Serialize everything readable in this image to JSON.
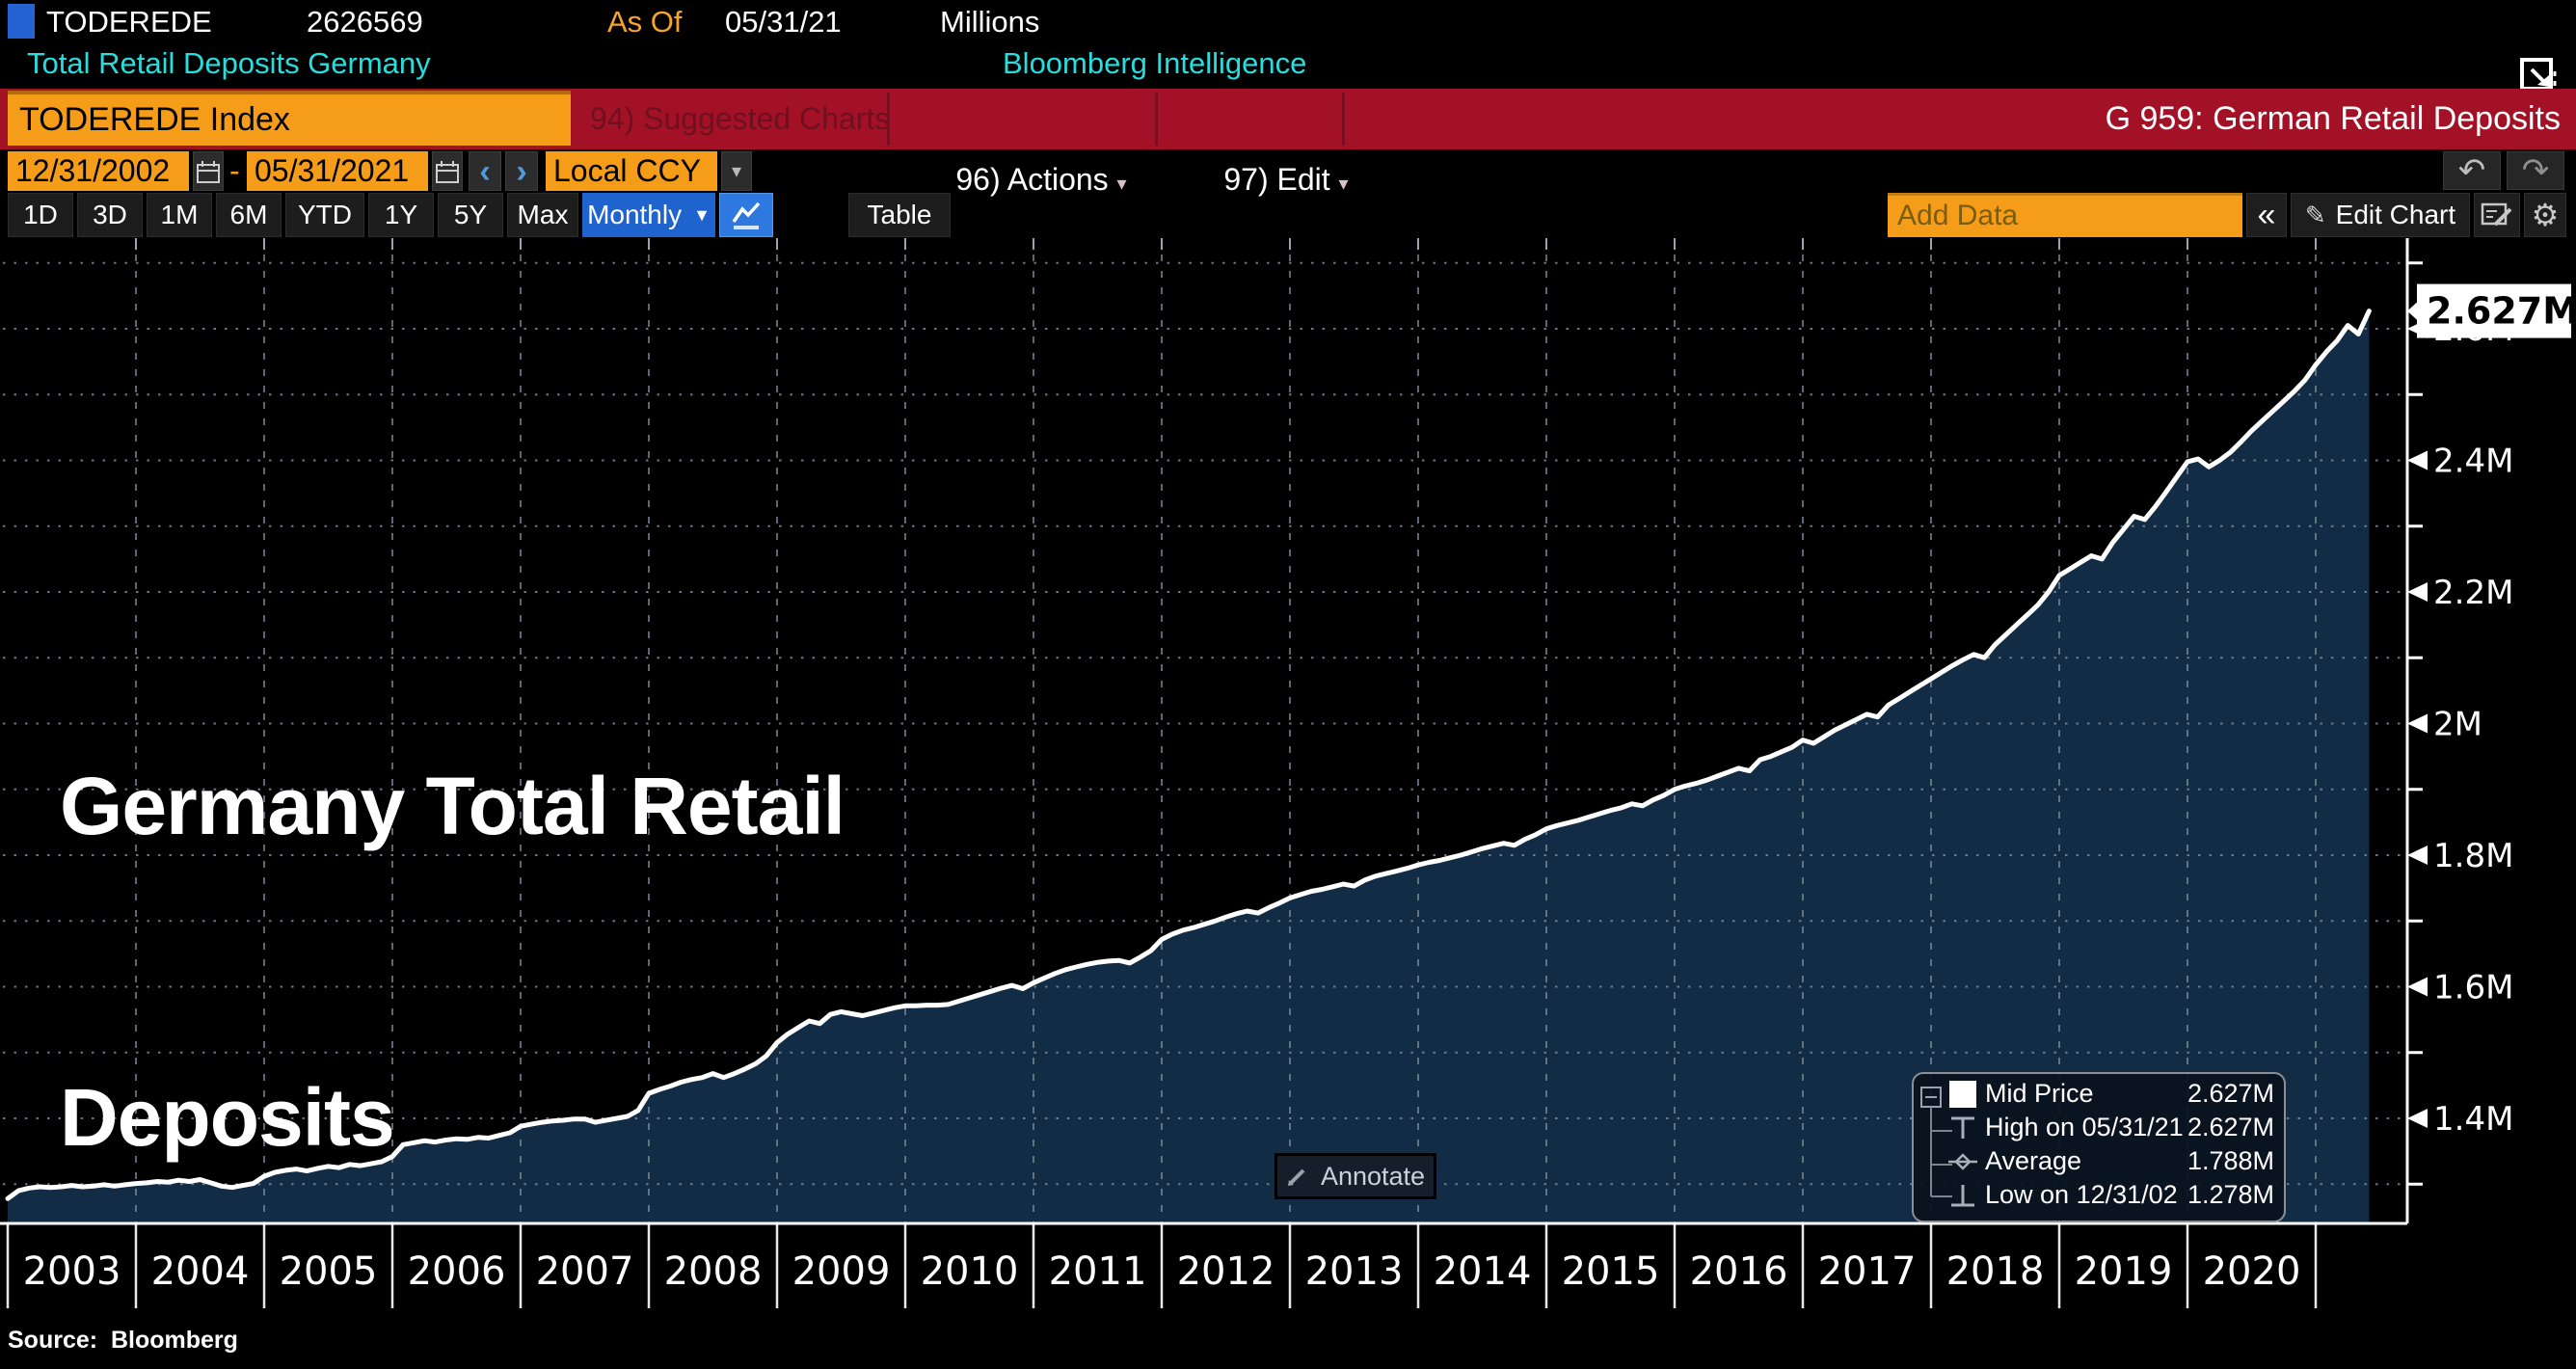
{
  "header": {
    "security": "TODEREDE",
    "last_value": "2626569",
    "as_of_label": "As Of",
    "as_of_date": "05/31/21",
    "units": "Millions",
    "subtitle_left": "Total Retail Deposits Germany",
    "subtitle_right": "Bloomberg Intelligence"
  },
  "toolbar": {
    "security_field": "TODEREDE Index",
    "suggested_charts": "94) Suggested Charts",
    "actions": "96) Actions",
    "edit": "97) Edit",
    "chart_tag": "G 959: German Retail Deposits"
  },
  "date_row": {
    "start_date": "12/31/2002",
    "separator": "-",
    "end_date": "05/31/2021",
    "currency": "Local CCY"
  },
  "period_row": {
    "periods": [
      "1D",
      "3D",
      "1M",
      "6M",
      "YTD",
      "1Y",
      "5Y",
      "Max"
    ],
    "frequency": "Monthly",
    "table_label": "Table",
    "add_data_placeholder": "Add Data",
    "edit_chart_label": "Edit Chart"
  },
  "icons": {
    "dropdown_arrow": "▼",
    "small_arrow": "▾",
    "undo": "↶",
    "redo": "↷",
    "chevron_left": "‹",
    "chevron_right": "›",
    "double_chevron_left": "«",
    "pencil": "✎",
    "gear": "⚙"
  },
  "chart": {
    "watermark": [
      "Germany Total Retail",
      "Deposits"
    ],
    "annotate_label": "Annotate",
    "source": "Source:  Bloomberg"
  },
  "legend": {
    "rows": [
      {
        "marker": "mid-price-swatch",
        "label": "Mid Price",
        "value": "2.627M"
      },
      {
        "marker": "high-marker",
        "label": "High on 05/31/21",
        "value": "2.627M"
      },
      {
        "marker": "average-marker",
        "label": "Average",
        "value": "1.788M"
      },
      {
        "marker": "low-marker",
        "label": "Low on 12/31/02",
        "value": "1.278M"
      }
    ]
  },
  "chart_data": {
    "type": "area",
    "title": "Germany Total Retail Deposits",
    "frequency": "Monthly",
    "x_years": [
      2003,
      2004,
      2005,
      2006,
      2007,
      2008,
      2009,
      2010,
      2011,
      2012,
      2013,
      2014,
      2015,
      2016,
      2017,
      2018,
      2019,
      2020
    ],
    "y_axis": {
      "major": [
        {
          "v": 1.4,
          "label": "1.4M"
        },
        {
          "v": 1.6,
          "label": "1.6M"
        },
        {
          "v": 1.8,
          "label": "1.8M"
        },
        {
          "v": 2.0,
          "label": "2M"
        },
        {
          "v": 2.2,
          "label": "2.2M"
        },
        {
          "v": 2.4,
          "label": "2.4M"
        },
        {
          "v": 2.6,
          "label": "2.6M"
        }
      ],
      "minor": [
        1.3,
        1.5,
        1.7,
        1.9,
        2.1,
        2.3,
        2.5,
        2.7
      ]
    },
    "last_point": {
      "date": "05/31/21",
      "value": 2.627,
      "label": "2.627M"
    },
    "stats": {
      "mid": "2.627M",
      "high_date": "05/31/21",
      "high": "2.627M",
      "average": "1.788M",
      "low_date": "12/31/02",
      "low": "1.278M"
    },
    "series": {
      "name": "TODEREDE Index Mid Price",
      "units": "Millions",
      "start_year": 2002,
      "start_month": 12,
      "monthly_values": [
        1.278,
        1.29,
        1.294,
        1.296,
        1.295,
        1.296,
        1.298,
        1.296,
        1.297,
        1.299,
        1.297,
        1.299,
        1.301,
        1.302,
        1.304,
        1.303,
        1.306,
        1.304,
        1.307,
        1.302,
        1.297,
        1.295,
        1.298,
        1.301,
        1.312,
        1.318,
        1.321,
        1.323,
        1.32,
        1.324,
        1.327,
        1.325,
        1.33,
        1.328,
        1.331,
        1.334,
        1.342,
        1.36,
        1.363,
        1.366,
        1.364,
        1.367,
        1.369,
        1.368,
        1.371,
        1.37,
        1.374,
        1.378,
        1.388,
        1.391,
        1.394,
        1.396,
        1.397,
        1.399,
        1.399,
        1.394,
        1.397,
        1.4,
        1.403,
        1.412,
        1.438,
        1.444,
        1.449,
        1.455,
        1.459,
        1.462,
        1.468,
        1.462,
        1.468,
        1.475,
        1.483,
        1.495,
        1.515,
        1.528,
        1.538,
        1.548,
        1.544,
        1.558,
        1.562,
        1.559,
        1.556,
        1.56,
        1.564,
        1.568,
        1.571,
        1.571,
        1.572,
        1.572,
        1.573,
        1.578,
        1.583,
        1.588,
        1.593,
        1.598,
        1.602,
        1.597,
        1.606,
        1.613,
        1.62,
        1.626,
        1.63,
        1.634,
        1.637,
        1.639,
        1.64,
        1.636,
        1.645,
        1.655,
        1.672,
        1.68,
        1.686,
        1.69,
        1.695,
        1.7,
        1.706,
        1.711,
        1.715,
        1.712,
        1.72,
        1.727,
        1.735,
        1.74,
        1.745,
        1.748,
        1.752,
        1.756,
        1.753,
        1.762,
        1.768,
        1.772,
        1.776,
        1.78,
        1.785,
        1.789,
        1.792,
        1.796,
        1.8,
        1.805,
        1.81,
        1.814,
        1.818,
        1.815,
        1.824,
        1.831,
        1.84,
        1.845,
        1.849,
        1.853,
        1.858,
        1.863,
        1.868,
        1.872,
        1.878,
        1.875,
        1.884,
        1.891,
        1.9,
        1.905,
        1.909,
        1.914,
        1.92,
        1.926,
        1.932,
        1.928,
        1.945,
        1.95,
        1.957,
        1.964,
        1.975,
        1.97,
        1.98,
        1.99,
        1.998,
        2.006,
        2.014,
        2.01,
        2.028,
        2.038,
        2.048,
        2.058,
        2.068,
        2.078,
        2.088,
        2.097,
        2.105,
        2.1,
        2.12,
        2.135,
        2.15,
        2.165,
        2.18,
        2.2,
        2.225,
        2.235,
        2.245,
        2.255,
        2.25,
        2.275,
        2.295,
        2.315,
        2.31,
        2.33,
        2.352,
        2.375,
        2.398,
        2.402,
        2.39,
        2.4,
        2.412,
        2.428,
        2.445,
        2.46,
        2.475,
        2.49,
        2.505,
        2.522,
        2.545,
        2.565,
        2.582,
        2.605,
        2.592,
        2.627
      ]
    }
  },
  "colors": {
    "orange": "#f59d18",
    "red_bar": "#a31126",
    "red_dim_text": "#6e1020",
    "cyan": "#27dddd",
    "amber": "#f5a52a",
    "blue_accent": "#1f63cf",
    "blue_flag": "#2463d1",
    "area_fill": "#132c45",
    "line": "#ffffff",
    "grid": "#7d8b99",
    "callout_bg": "#ffffff",
    "callout_text": "#000000"
  }
}
